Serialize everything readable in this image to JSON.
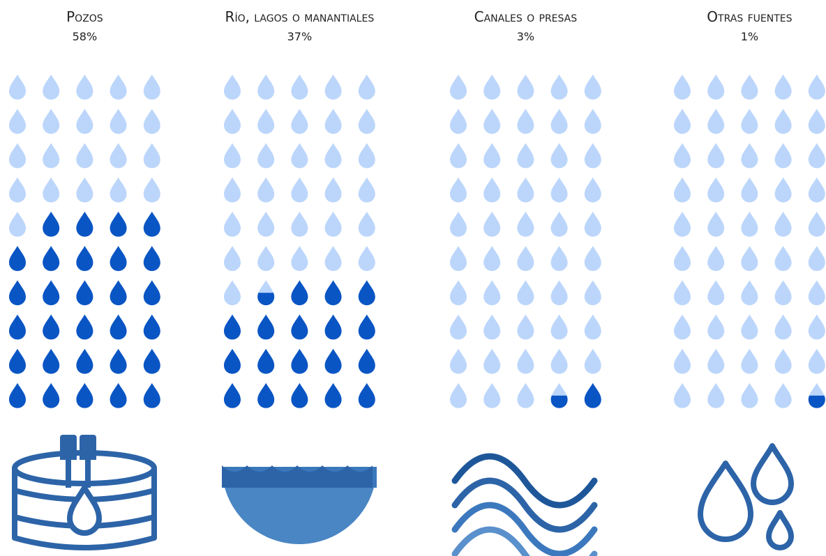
{
  "chart_data": {
    "type": "pictogram",
    "categories": [
      "Pozos",
      "Río, lagos o manantiales",
      "Canales o presas",
      "Otras fuentes"
    ],
    "values": [
      58,
      37,
      3,
      1
    ],
    "value_labels": [
      "58%",
      "37%",
      "3%",
      "1%"
    ],
    "color": "#0a55c4",
    "empty_color": "#bcd6fb"
  }
}
